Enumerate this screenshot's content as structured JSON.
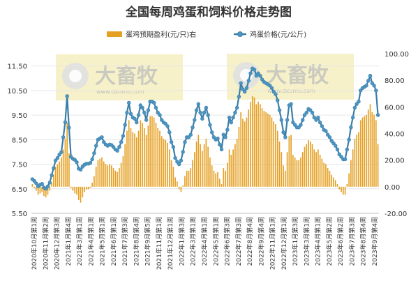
{
  "chart_data": {
    "type": "bar+line",
    "title": "全国每周鸡蛋和饲料价格走势图",
    "legend": [
      "蛋鸡预期盈利(元/只)右",
      "鸡蛋价格(元/公斤)"
    ],
    "legend_placement": "top-center",
    "colors": {
      "bar": "#e5a022",
      "line": "#3a7ea8",
      "marker": "#4d95c2"
    },
    "left_axis": {
      "ticks": [
        "5.50",
        "6.50",
        "7.50",
        "8.50",
        "9.50",
        "10.50",
        "11.50"
      ],
      "ylim": [
        5.5,
        12.0
      ]
    },
    "right_axis": {
      "ticks": [
        "-20.00",
        "0.00",
        "20.00",
        "40.00",
        "60.00",
        "80.00",
        "100.00"
      ],
      "ylim": [
        -20,
        100
      ]
    },
    "x_tick_labels": [
      "2020年10月第1周",
      "2020年11月第2周",
      "2020年12月第3周",
      "2021年1月第4周",
      "2021年3月第1周",
      "2021年4月第1周",
      "2021年5月第1周",
      "2021年6月第1周",
      "2021年7月第3周",
      "2021年8月第4周",
      "2021年9月第5周",
      "2021年11月第1周",
      "2021年12月第1周",
      "2022年1月第3周",
      "2022年3月第1周",
      "2022年4月第1周",
      "2022年5月第1周",
      "2022年6月第3周",
      "2022年7月第3周",
      "2022年8月第4周",
      "2022年9月第4周",
      "2022年11月第1周",
      "2022年12月第1周",
      "2023年1月第3周",
      "2023年3月第1周",
      "2023年4月第1周",
      "2023年5月第2周",
      "2023年6月第2周",
      "2023年7月第3周",
      "2023年8月第4周",
      "2023年9月第4周"
    ],
    "series": [
      {
        "name": "鸡蛋价格(元/公斤)",
        "axis": "left",
        "values": [
          6.89,
          6.82,
          6.72,
          6.6,
          6.66,
          6.7,
          6.55,
          6.5,
          6.6,
          6.75,
          7.05,
          7.34,
          7.65,
          7.75,
          7.89,
          7.99,
          8.6,
          9.21,
          10.27,
          8.99,
          7.8,
          7.72,
          7.68,
          7.58,
          7.32,
          7.28,
          7.4,
          7.48,
          7.52,
          7.52,
          7.55,
          7.7,
          7.95,
          8.25,
          8.5,
          8.55,
          8.6,
          8.4,
          8.3,
          8.25,
          8.3,
          8.28,
          8.2,
          8.1,
          8.05,
          8.2,
          8.4,
          8.65,
          9.1,
          9.6,
          10.0,
          9.55,
          9.4,
          9.35,
          9.2,
          9.5,
          9.9,
          9.8,
          9.6,
          9.3,
          9.7,
          10.05,
          10.05,
          10.0,
          9.8,
          9.6,
          9.5,
          9.3,
          9.2,
          9.15,
          9.05,
          8.8,
          8.4,
          8.2,
          7.75,
          7.6,
          7.5,
          7.65,
          8.0,
          8.4,
          8.6,
          8.6,
          8.7,
          9.0,
          9.3,
          9.7,
          9.95,
          9.6,
          9.35,
          9.6,
          9.8,
          9.5,
          9.1,
          8.8,
          8.6,
          8.5,
          8.55,
          8.3,
          8.1,
          8.7,
          8.6,
          8.9,
          9.4,
          9.2,
          9.4,
          9.6,
          9.8,
          10.25,
          10.8,
          10.55,
          10.45,
          10.6,
          10.9,
          11.2,
          11.4,
          11.35,
          11.1,
          11.2,
          11.1,
          10.95,
          10.85,
          10.8,
          10.75,
          10.7,
          10.6,
          10.45,
          10.35,
          10.1,
          9.7,
          9.3,
          8.8,
          8.6,
          9.3,
          9.9,
          9.95,
          9.2,
          9.1,
          9.0,
          9.0,
          9.1,
          9.3,
          9.5,
          9.6,
          9.75,
          9.7,
          9.6,
          9.4,
          9.3,
          9.4,
          9.2,
          9.05,
          8.9,
          8.85,
          8.7,
          8.6,
          8.45,
          8.35,
          8.25,
          8.1,
          7.9,
          7.8,
          7.7,
          7.7,
          8.1,
          8.5,
          9.0,
          9.4,
          9.8,
          9.95,
          10.05,
          10.5,
          10.6,
          10.65,
          10.7,
          10.9,
          11.1,
          10.8,
          10.7,
          10.5,
          9.5
        ]
      },
      {
        "name": "蛋鸡预期盈利(元/只)右",
        "axis": "right",
        "values": [
          2,
          -1,
          -3,
          -6,
          -5,
          -4,
          -7,
          -8,
          -6,
          -3,
          3,
          9,
          15,
          17,
          19,
          22,
          28,
          36,
          48,
          25,
          -1,
          -3,
          -5,
          -6,
          -10,
          -12,
          -8,
          -4,
          -2,
          -2,
          -1,
          3,
          8,
          15,
          20,
          21,
          22,
          19,
          17,
          16,
          17,
          16,
          14,
          12,
          11,
          14,
          18,
          23,
          32,
          42,
          50,
          44,
          41,
          40,
          37,
          42,
          50,
          48,
          44,
          39,
          46,
          53,
          53,
          52,
          48,
          44,
          42,
          38,
          36,
          35,
          33,
          28,
          20,
          15,
          7,
          4,
          -2,
          -4,
          1,
          8,
          12,
          12,
          14,
          20,
          26,
          34,
          39,
          32,
          27,
          32,
          36,
          30,
          22,
          16,
          12,
          10,
          11,
          6,
          2,
          14,
          12,
          18,
          28,
          24,
          28,
          32,
          36,
          45,
          56,
          51,
          49,
          52,
          58,
          64,
          68,
          67,
          62,
          64,
          62,
          59,
          57,
          56,
          55,
          54,
          52,
          49,
          47,
          42,
          34,
          26,
          16,
          12,
          26,
          38,
          39,
          24,
          22,
          20,
          20,
          22,
          26,
          30,
          32,
          35,
          34,
          32,
          28,
          26,
          28,
          24,
          21,
          18,
          17,
          14,
          12,
          9,
          7,
          5,
          2,
          -2,
          -4,
          -6,
          -6,
          2,
          10,
          20,
          28,
          36,
          39,
          41,
          50,
          52,
          53,
          54,
          58,
          62,
          56,
          54,
          50,
          32
        ]
      }
    ],
    "watermark": {
      "brand": "大畜牧",
      "url": "www.dxumu.com"
    }
  }
}
